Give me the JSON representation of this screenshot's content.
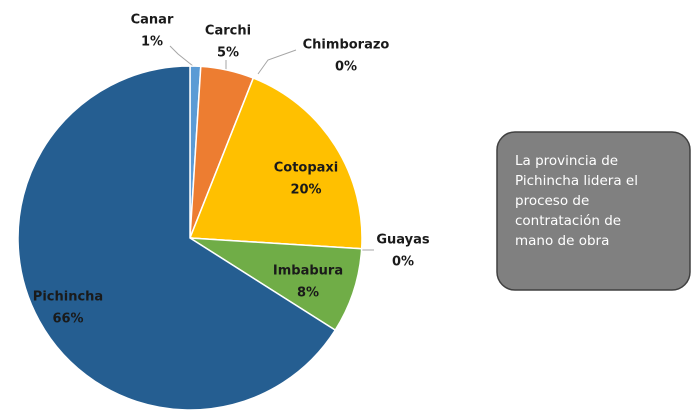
{
  "chart_data": {
    "type": "pie",
    "categories": [
      "Canar",
      "Carchi",
      "Chimborazo",
      "Cotopaxi",
      "Guayas",
      "Imbabura",
      "Pichincha"
    ],
    "values": [
      1,
      5,
      0,
      20,
      0,
      8,
      66
    ],
    "value_labels": [
      "1%",
      "5%",
      "0%",
      "20%",
      "0%",
      "8%",
      "66%"
    ],
    "colors": [
      "#5b9bd5",
      "#ed7d31",
      "#a5a5a5",
      "#ffc000",
      "#4472c4",
      "#70ad47",
      "#255e91"
    ],
    "annotation": [
      "La provincia de",
      "Pichincha lidera el",
      "proceso de",
      "contratación de",
      "mano de obra"
    ]
  }
}
